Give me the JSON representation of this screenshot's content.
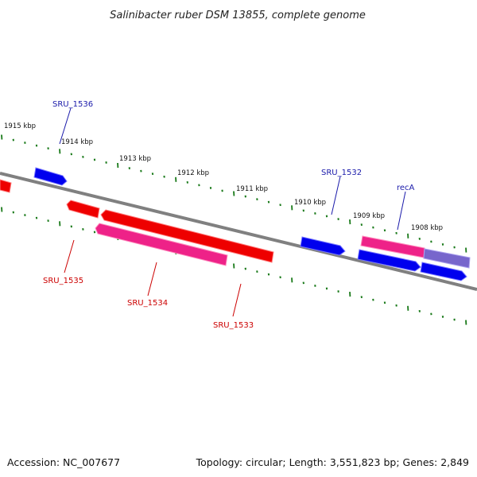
{
  "title": "Salinibacter ruber DSM 13855, complete genome",
  "footer": {
    "accession": "Accession: NC_007677",
    "topology": "Topology: circular; Length: 3,551,823 bp; Genes: 2,849"
  },
  "colors": {
    "backbone": "#808080",
    "tick": "#1a7a1a",
    "forward_gene": "#0000ee",
    "reverse_gene": "#ee0000",
    "rna_gene": "#ee2288",
    "other_gene": "#7766cc",
    "forward_label": "#1a1aaa",
    "reverse_label": "#cc0000"
  },
  "tick_labels": [
    {
      "kbp": 1915,
      "label": "1915 kbp"
    },
    {
      "kbp": 1914,
      "label": "1914 kbp"
    },
    {
      "kbp": 1913,
      "label": "1913 kbp"
    },
    {
      "kbp": 1912,
      "label": "1912 kbp"
    },
    {
      "kbp": 1911,
      "label": "1911 kbp"
    },
    {
      "kbp": 1910,
      "label": "1910 kbp"
    },
    {
      "kbp": 1909,
      "label": "1909 kbp"
    },
    {
      "kbp": 1908,
      "label": "1908 kbp"
    }
  ],
  "gene_labels": [
    {
      "name": "SRU_1536",
      "strand": "forward"
    },
    {
      "name": "SRU_1532",
      "strand": "forward"
    },
    {
      "name": "recA",
      "strand": "forward"
    },
    {
      "name": "SRU_1535",
      "strand": "reverse"
    },
    {
      "name": "SRU_1534",
      "strand": "reverse"
    },
    {
      "name": "SRU_1533",
      "strand": "reverse"
    }
  ]
}
